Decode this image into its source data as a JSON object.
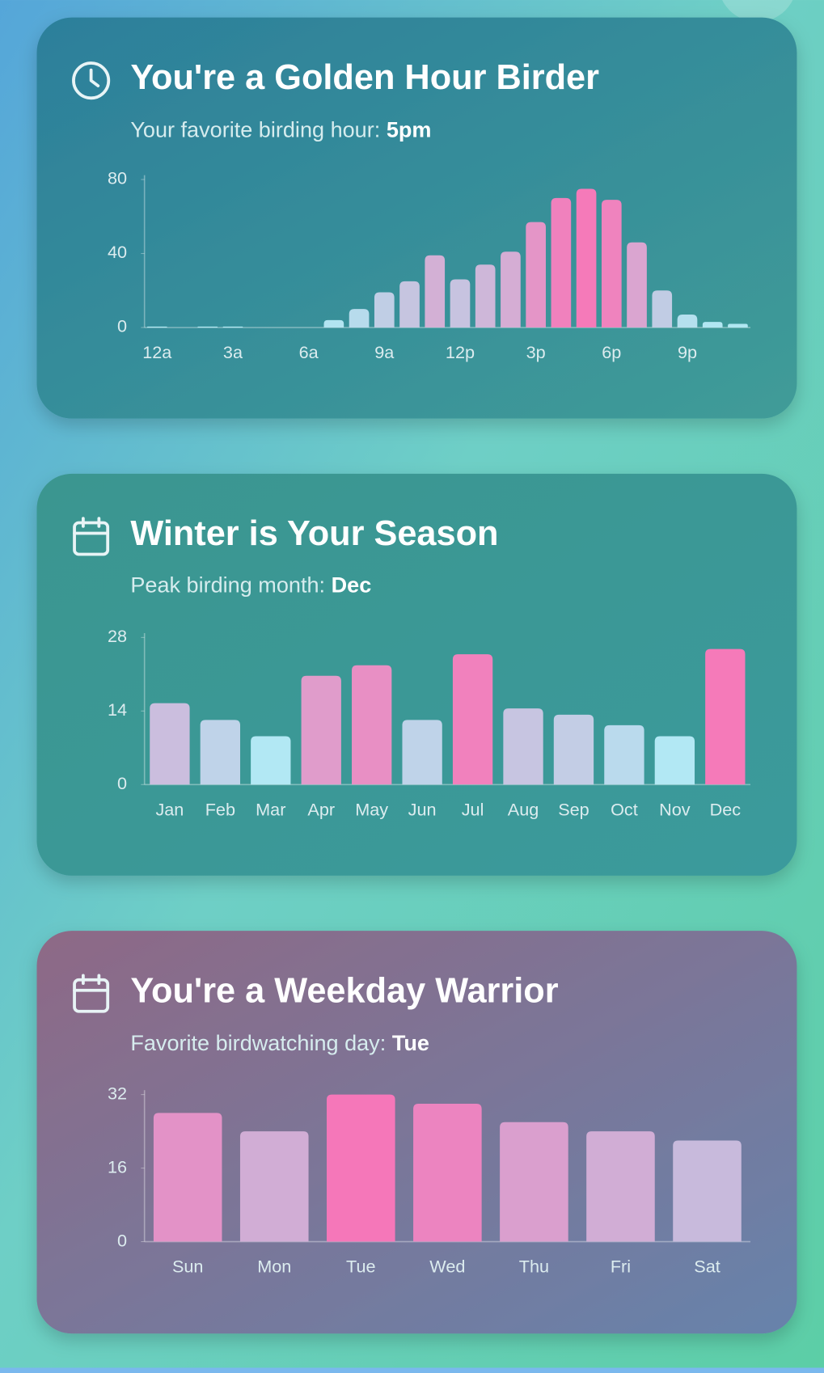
{
  "chart_data": [
    {
      "type": "bar",
      "title": "You're a Golden Hour Birder",
      "subtitle": "Your favorite birding hour:",
      "highlight": "5pm",
      "categories": [
        "12a",
        null,
        null,
        "3a",
        null,
        null,
        "6a",
        null,
        null,
        "9a",
        null,
        null,
        "12p",
        null,
        null,
        "3p",
        null,
        null,
        "6p",
        null,
        null,
        "9p",
        null,
        null
      ],
      "values": [
        0.5,
        0,
        0.5,
        0.5,
        0,
        0,
        0,
        4,
        10,
        19,
        25,
        39,
        26,
        34,
        41,
        57,
        70,
        75,
        69,
        46,
        20,
        7,
        3,
        2
      ],
      "ylim": [
        0,
        80
      ],
      "yticks": [
        0,
        40,
        80
      ],
      "color_scale": [
        "#aeeaf4",
        "#f57ab9"
      ]
    },
    {
      "type": "bar",
      "title": "Winter is Your Season",
      "subtitle": "Peak birding month:",
      "highlight": "Dec",
      "categories": [
        "Jan",
        "Feb",
        "Mar",
        "Apr",
        "May",
        "Jun",
        "Jul",
        "Aug",
        "Sep",
        "Oct",
        "Nov",
        "Dec"
      ],
      "values": [
        15.5,
        12.3,
        9.2,
        20.7,
        22.7,
        12.3,
        24.8,
        14.5,
        13.3,
        11.3,
        9.2,
        25.8
      ],
      "ylim": [
        0,
        28
      ],
      "yticks": [
        0,
        14,
        28
      ],
      "color_scale": [
        "#b2e8f4",
        "#f57ab9"
      ]
    },
    {
      "type": "bar",
      "title": "You're a Weekday Warrior",
      "subtitle": "Favorite birdwatching day:",
      "highlight": "Tue",
      "categories": [
        "Sun",
        "Mon",
        "Tue",
        "Wed",
        "Thu",
        "Fri",
        "Sat"
      ],
      "values": [
        28,
        24,
        32,
        30,
        26,
        24,
        22
      ],
      "ylim": [
        0,
        32
      ],
      "yticks": [
        0,
        16,
        32
      ],
      "color_scale": [
        "#c8badc",
        "#f577b9"
      ]
    }
  ]
}
